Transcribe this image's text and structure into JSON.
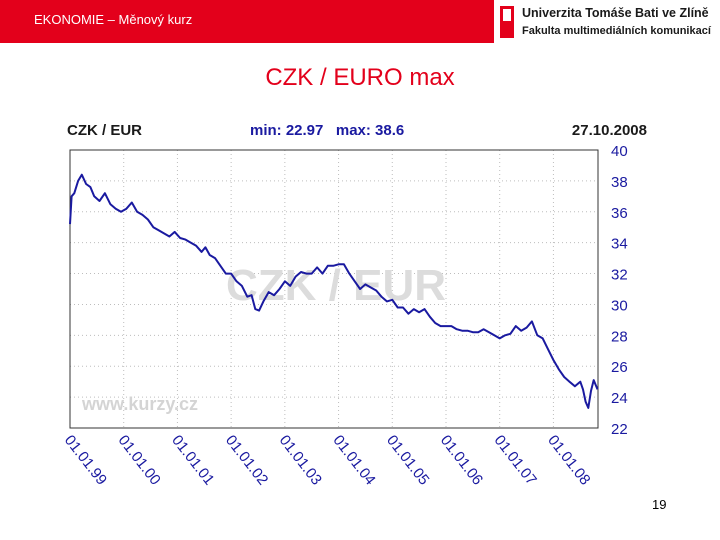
{
  "header": {
    "title": "EKONOMIE – Měnový kurz"
  },
  "logo": {
    "line1": "Univerzita Tomáše Bati ve Zlíně",
    "line2": "Fakulta multimediálních komunikací"
  },
  "slide": {
    "title": "CZK / EURO max",
    "page_number": "19"
  },
  "colors": {
    "accent": "#e3001b",
    "series": "#1a1aa0",
    "chart_text": "#1a1aa0",
    "watermark": "#d8d8d8"
  },
  "chart_data": {
    "type": "line",
    "title": "CZK / EUR",
    "summary": "min: 22.97   max: 38.6",
    "date_label": "27.10.2008",
    "watermark": "CZK / EUR",
    "source": "www.kurzy.cz",
    "ylim": [
      22,
      40
    ],
    "y_ticks": [
      40,
      38,
      36,
      34,
      32,
      30,
      28,
      26,
      24,
      22
    ],
    "y_tick_labels": [
      "40",
      "38",
      "36",
      "34",
      "32",
      "30",
      "28",
      "26",
      "24",
      "22"
    ],
    "x_tick_labels": [
      "01.01.99",
      "01.01.00",
      "01.01.01",
      "01.01.02",
      "01.01.03",
      "01.01.04",
      "01.01.05",
      "01.01.06",
      "01.01.07",
      "01.01.08"
    ],
    "x_range": [
      1999.0,
      2008.83
    ],
    "grid": true,
    "series": [
      {
        "x": [
          1999.0,
          1999.03,
          1999.08,
          1999.15,
          1999.22,
          1999.3,
          1999.38,
          1999.45,
          1999.55,
          1999.65,
          1999.75,
          1999.85,
          1999.95,
          2000.05,
          2000.15,
          2000.25,
          2000.35,
          2000.45,
          2000.55,
          2000.65,
          2000.75,
          2000.85,
          2000.95,
          2001.05,
          2001.15,
          2001.25,
          2001.35,
          2001.45,
          2001.52,
          2001.6,
          2001.7,
          2001.8,
          2001.9,
          2002.0,
          2002.1,
          2002.2,
          2002.3,
          2002.38,
          2002.45,
          2002.52,
          2002.6,
          2002.7,
          2002.8,
          2002.9,
          2003.0,
          2003.1,
          2003.2,
          2003.3,
          2003.4,
          2003.5,
          2003.6,
          2003.7,
          2003.8,
          2003.9,
          2004.0,
          2004.1,
          2004.2,
          2004.3,
          2004.4,
          2004.5,
          2004.6,
          2004.7,
          2004.8,
          2004.9,
          2005.0,
          2005.1,
          2005.2,
          2005.3,
          2005.4,
          2005.5,
          2005.6,
          2005.7,
          2005.8,
          2005.9,
          2006.0,
          2006.1,
          2006.2,
          2006.3,
          2006.4,
          2006.5,
          2006.6,
          2006.7,
          2006.8,
          2006.9,
          2007.0,
          2007.1,
          2007.2,
          2007.3,
          2007.4,
          2007.5,
          2007.6,
          2007.7,
          2007.8,
          2007.9,
          2008.0,
          2008.1,
          2008.2,
          2008.3,
          2008.4,
          2008.5,
          2008.55,
          2008.6,
          2008.65,
          2008.7,
          2008.75,
          2008.82
        ],
        "values": [
          35.2,
          37.0,
          37.2,
          38.0,
          38.4,
          37.8,
          37.6,
          37.0,
          36.7,
          37.2,
          36.5,
          36.2,
          36.0,
          36.2,
          36.6,
          36.0,
          35.8,
          35.5,
          35.0,
          34.8,
          34.6,
          34.4,
          34.7,
          34.3,
          34.2,
          34.0,
          33.8,
          33.4,
          33.7,
          33.2,
          33.0,
          32.5,
          32.0,
          32.0,
          31.5,
          31.2,
          30.5,
          30.6,
          29.7,
          29.6,
          30.2,
          30.8,
          30.6,
          31.0,
          31.5,
          31.2,
          31.8,
          32.1,
          32.0,
          32.0,
          32.4,
          32.0,
          32.5,
          32.5,
          32.6,
          32.6,
          32.0,
          31.5,
          31.0,
          31.3,
          31.1,
          30.9,
          30.5,
          30.2,
          30.3,
          29.8,
          29.8,
          29.4,
          29.7,
          29.5,
          29.7,
          29.2,
          28.8,
          28.6,
          28.6,
          28.6,
          28.4,
          28.3,
          28.3,
          28.2,
          28.2,
          28.4,
          28.2,
          28.0,
          27.8,
          28.0,
          28.1,
          28.6,
          28.3,
          28.5,
          28.9,
          28.0,
          27.8,
          27.1,
          26.4,
          25.8,
          25.3,
          25.0,
          24.7,
          25.0,
          24.5,
          23.7,
          23.3,
          24.4,
          25.1,
          24.5
        ]
      }
    ]
  }
}
